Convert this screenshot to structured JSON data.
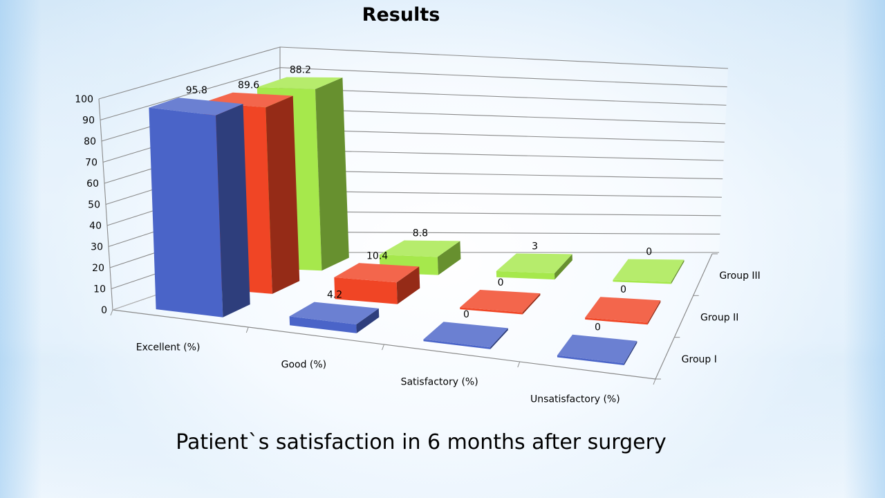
{
  "slide": {
    "title": "Results",
    "caption": "Patient`s satisfaction in 6 months after surgery"
  },
  "chart_data": {
    "type": "bar",
    "variant": "3d-clustered-depth",
    "title": "Results",
    "categories": [
      "Excellent (%)",
      "Good (%)",
      "Satisfactory (%)",
      "Unsatisfactory (%)"
    ],
    "series": [
      {
        "name": "Group I",
        "values": [
          95.8,
          4.2,
          0,
          0
        ],
        "color": "#4a64c8"
      },
      {
        "name": "Group II",
        "values": [
          89.6,
          10.4,
          0,
          0
        ],
        "color": "#f04525"
      },
      {
        "name": "Group III",
        "values": [
          88.2,
          8.8,
          3,
          0
        ],
        "color": "#a6e84c"
      }
    ],
    "ylim": [
      0,
      100
    ],
    "yticks": [
      0,
      10,
      20,
      30,
      40,
      50,
      60,
      70,
      80,
      90,
      100
    ],
    "grid": true,
    "data_labels": true
  }
}
